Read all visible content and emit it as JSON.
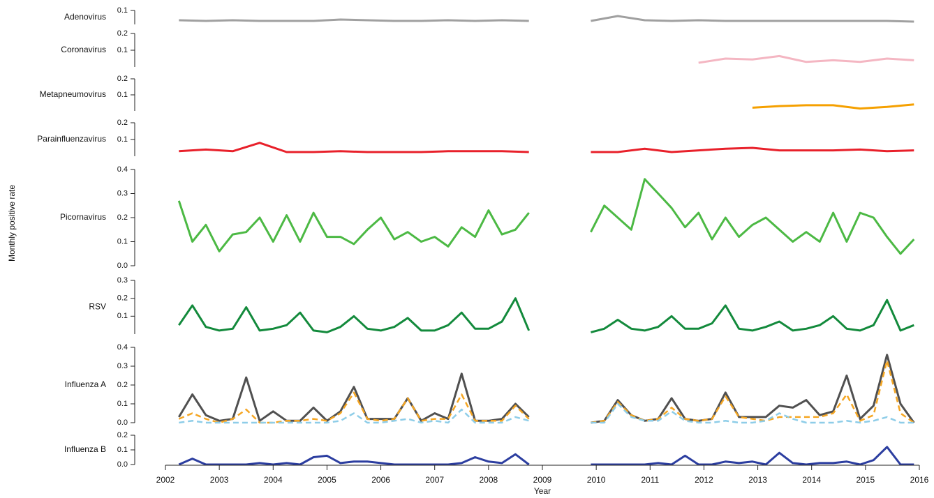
{
  "y_label": "Monthly positive rate",
  "chart_data": [
    {
      "type": "line",
      "title": "Adenovirus",
      "ylim": [
        0,
        0.1
      ],
      "yticks": [
        0.1
      ],
      "x": [
        2002.25,
        2002.75,
        2003.25,
        2003.75,
        2004.25,
        2004.75,
        2005.25,
        2005.75,
        2006.25,
        2006.75,
        2007.25,
        2007.75,
        2008.25,
        2008.75,
        2009.4,
        2009.9,
        2010.4,
        2010.9,
        2011.4,
        2011.9,
        2012.4,
        2012.9,
        2013.4,
        2013.9,
        2014.4,
        2014.9,
        2015.4,
        2015.9
      ],
      "series": [
        {
          "color": "#a0a0a0",
          "values": [
            0.03,
            0.025,
            0.03,
            0.025,
            0.025,
            0.025,
            0.035,
            0.03,
            0.025,
            0.025,
            0.03,
            0.025,
            0.03,
            0.025,
            null,
            0.025,
            0.06,
            0.03,
            0.025,
            0.03,
            0.025,
            0.025,
            0.025,
            0.025,
            0.025,
            0.025,
            0.025,
            0.02
          ]
        }
      ]
    },
    {
      "type": "line",
      "title": "Coronavirus",
      "ylim": [
        0,
        0.2
      ],
      "yticks": [
        0.1,
        0.2
      ],
      "x": [
        2011.9,
        2012.4,
        2012.9,
        2013.4,
        2013.9,
        2014.4,
        2014.9,
        2015.4,
        2015.9
      ],
      "series": [
        {
          "color": "#f4b6c2",
          "values": [
            0.025,
            0.05,
            0.045,
            0.065,
            0.03,
            0.04,
            0.03,
            0.05,
            0.04
          ]
        }
      ]
    },
    {
      "type": "line",
      "title": "Metapneumovirus",
      "ylim": [
        0,
        0.2
      ],
      "yticks": [
        0.1,
        0.2
      ],
      "x": [
        2012.9,
        2013.4,
        2013.9,
        2014.4,
        2014.9,
        2015.4,
        2015.9
      ],
      "series": [
        {
          "color": "#f5a000",
          "values": [
            0.02,
            0.03,
            0.035,
            0.035,
            0.015,
            0.025,
            0.04
          ]
        }
      ]
    },
    {
      "type": "line",
      "title": "Parainfluenzavirus",
      "ylim": [
        0,
        0.2
      ],
      "yticks": [
        0.1,
        0.2
      ],
      "x": [
        2002.25,
        2002.75,
        2003.25,
        2003.75,
        2004.25,
        2004.75,
        2005.25,
        2005.75,
        2006.25,
        2006.75,
        2007.25,
        2007.75,
        2008.25,
        2008.75,
        2009.4,
        2009.9,
        2010.4,
        2010.9,
        2011.4,
        2011.9,
        2012.4,
        2012.9,
        2013.4,
        2013.9,
        2014.4,
        2014.9,
        2015.4,
        2015.9
      ],
      "series": [
        {
          "color": "#e8202a",
          "values": [
            0.03,
            0.04,
            0.03,
            0.08,
            0.025,
            0.025,
            0.03,
            0.025,
            0.025,
            0.025,
            0.03,
            0.03,
            0.03,
            0.025,
            null,
            0.025,
            0.025,
            0.045,
            0.025,
            0.035,
            0.045,
            0.05,
            0.035,
            0.035,
            0.035,
            0.04,
            0.03,
            0.035
          ]
        }
      ]
    },
    {
      "type": "line",
      "title": "Picornavirus",
      "ylim": [
        0,
        0.4
      ],
      "yticks": [
        {
          "value": 0,
          "label": "0.0"
        },
        0.1,
        0.2,
        0.3,
        0.4
      ],
      "x": [
        2002.25,
        2002.5,
        2002.75,
        2003,
        2003.25,
        2003.5,
        2003.75,
        2004,
        2004.25,
        2004.5,
        2004.75,
        2005,
        2005.25,
        2005.5,
        2005.75,
        2006,
        2006.25,
        2006.5,
        2006.75,
        2007,
        2007.25,
        2007.5,
        2007.75,
        2008,
        2008.25,
        2008.5,
        2008.75,
        2009.4,
        2009.9,
        2010.15,
        2010.4,
        2010.65,
        2010.9,
        2011.15,
        2011.4,
        2011.65,
        2011.9,
        2012.15,
        2012.4,
        2012.65,
        2012.9,
        2013.15,
        2013.4,
        2013.65,
        2013.9,
        2014.15,
        2014.4,
        2014.65,
        2014.9,
        2015.15,
        2015.4,
        2015.65,
        2015.9
      ],
      "series": [
        {
          "color": "#4cb944",
          "values": [
            0.27,
            0.1,
            0.17,
            0.06,
            0.13,
            0.14,
            0.2,
            0.1,
            0.21,
            0.1,
            0.22,
            0.12,
            0.12,
            0.09,
            0.15,
            0.2,
            0.11,
            0.14,
            0.1,
            0.12,
            0.08,
            0.16,
            0.12,
            0.23,
            0.13,
            0.15,
            0.22,
            null,
            0.14,
            0.25,
            0.2,
            0.15,
            0.36,
            0.3,
            0.24,
            0.16,
            0.22,
            0.11,
            0.2,
            0.12,
            0.17,
            0.2,
            0.15,
            0.1,
            0.14,
            0.1,
            0.22,
            0.1,
            0.22,
            0.2,
            0.12,
            0.05,
            0.11
          ]
        }
      ]
    },
    {
      "type": "line",
      "title": "RSV",
      "ylim": [
        0,
        0.3
      ],
      "yticks": [
        0.1,
        0.2,
        0.3
      ],
      "x": [
        2002.25,
        2002.5,
        2002.75,
        2003,
        2003.25,
        2003.5,
        2003.75,
        2004,
        2004.25,
        2004.5,
        2004.75,
        2005,
        2005.25,
        2005.5,
        2005.75,
        2006,
        2006.25,
        2006.5,
        2006.75,
        2007,
        2007.25,
        2007.5,
        2007.75,
        2008,
        2008.25,
        2008.5,
        2008.75,
        2009.4,
        2009.9,
        2010.15,
        2010.4,
        2010.65,
        2010.9,
        2011.15,
        2011.4,
        2011.65,
        2011.9,
        2012.15,
        2012.4,
        2012.65,
        2012.9,
        2013.15,
        2013.4,
        2013.65,
        2013.9,
        2014.15,
        2014.4,
        2014.65,
        2014.9,
        2015.15,
        2015.4,
        2015.65,
        2015.9
      ],
      "series": [
        {
          "color": "#138a3c",
          "values": [
            0.05,
            0.16,
            0.04,
            0.02,
            0.03,
            0.15,
            0.02,
            0.03,
            0.05,
            0.12,
            0.02,
            0.01,
            0.04,
            0.1,
            0.03,
            0.02,
            0.04,
            0.09,
            0.02,
            0.02,
            0.05,
            0.12,
            0.03,
            0.03,
            0.07,
            0.2,
            0.02,
            null,
            0.01,
            0.03,
            0.08,
            0.03,
            0.02,
            0.04,
            0.1,
            0.03,
            0.03,
            0.06,
            0.16,
            0.03,
            0.02,
            0.04,
            0.07,
            0.02,
            0.03,
            0.05,
            0.1,
            0.03,
            0.02,
            0.05,
            0.19,
            0.02,
            0.05
          ]
        }
      ]
    },
    {
      "type": "line",
      "title": "Influenza A",
      "ylim": [
        0,
        0.4
      ],
      "yticks": [
        {
          "value": 0,
          "label": "0.0"
        },
        0.1,
        0.2,
        0.3,
        0.4
      ],
      "x": [
        2002.25,
        2002.5,
        2002.75,
        2003,
        2003.25,
        2003.5,
        2003.75,
        2004,
        2004.25,
        2004.5,
        2004.75,
        2005,
        2005.25,
        2005.5,
        2005.75,
        2006,
        2006.25,
        2006.5,
        2006.75,
        2007,
        2007.25,
        2007.5,
        2007.75,
        2008,
        2008.25,
        2008.5,
        2008.75,
        2009.4,
        2009.9,
        2010.15,
        2010.4,
        2010.65,
        2010.9,
        2011.15,
        2011.4,
        2011.65,
        2011.9,
        2012.15,
        2012.4,
        2012.65,
        2012.9,
        2013.15,
        2013.4,
        2013.65,
        2013.9,
        2014.15,
        2014.4,
        2014.65,
        2014.9,
        2015.15,
        2015.4,
        2015.65,
        2015.9
      ],
      "series": [
        {
          "color": "#505050",
          "dashed": false,
          "values": [
            0.03,
            0.15,
            0.04,
            0.01,
            0.02,
            0.24,
            0.01,
            0.06,
            0.01,
            0.01,
            0.08,
            0.01,
            0.06,
            0.19,
            0.02,
            0.02,
            0.02,
            0.13,
            0.01,
            0.05,
            0.02,
            0.26,
            0.01,
            0.01,
            0.02,
            0.1,
            0.03,
            null,
            0,
            0.01,
            0.12,
            0.04,
            0.01,
            0.02,
            0.13,
            0.02,
            0.01,
            0.02,
            0.16,
            0.03,
            0.03,
            0.03,
            0.09,
            0.08,
            0.12,
            0.04,
            0.06,
            0.25,
            0.02,
            0.09,
            0.36,
            0.1,
            0
          ]
        },
        {
          "color": "#f5a623",
          "dashed": true,
          "values": [
            0.02,
            0.05,
            0.02,
            0,
            0.02,
            0.07,
            0,
            0,
            0.01,
            0.01,
            0.02,
            0.01,
            0.05,
            0.16,
            0.02,
            0.01,
            0.02,
            0.13,
            0.01,
            0.02,
            0.02,
            0.15,
            0.01,
            0.01,
            0.01,
            0.09,
            0.02,
            null,
            0,
            0.01,
            0.11,
            0.04,
            0.01,
            0.02,
            0.08,
            0.02,
            0.01,
            0.02,
            0.14,
            0.03,
            0.02,
            0.01,
            0.03,
            0.03,
            0.03,
            0.03,
            0.05,
            0.15,
            0.01,
            0.04,
            0.33,
            0.05,
            0
          ]
        },
        {
          "color": "#8ecde8",
          "dashed": true,
          "values": [
            0,
            0.01,
            0,
            0,
            0,
            0,
            0,
            0,
            0,
            0,
            0,
            0,
            0.01,
            0.05,
            0,
            0,
            0.01,
            0.02,
            0,
            0.01,
            0,
            0.07,
            0,
            0,
            0,
            0.03,
            0.01,
            null,
            0,
            0,
            0.1,
            0.03,
            0.01,
            0.01,
            0.06,
            0.01,
            0,
            0,
            0.01,
            0,
            0,
            0.01,
            0.05,
            0.02,
            0,
            0,
            0,
            0.01,
            0,
            0.01,
            0.03,
            0,
            0
          ]
        }
      ]
    },
    {
      "type": "line",
      "title": "Influenza B",
      "ylim": [
        0,
        0.2
      ],
      "yticks": [
        {
          "value": 0,
          "label": "0.0"
        },
        0.1,
        0.2
      ],
      "xlim": [
        2002,
        2016
      ],
      "xticks": [
        2002,
        2003,
        2004,
        2005,
        2006,
        2007,
        2008,
        2009,
        2010,
        2011,
        2012,
        2013,
        2014,
        2015,
        2016
      ],
      "xlabel": "Year",
      "x": [
        2002.25,
        2002.5,
        2002.75,
        2003,
        2003.25,
        2003.5,
        2003.75,
        2004,
        2004.25,
        2004.5,
        2004.75,
        2005,
        2005.25,
        2005.5,
        2005.75,
        2006,
        2006.25,
        2006.5,
        2006.75,
        2007,
        2007.25,
        2007.5,
        2007.75,
        2008,
        2008.25,
        2008.5,
        2008.75,
        2009.4,
        2009.9,
        2010.15,
        2010.4,
        2010.65,
        2010.9,
        2011.15,
        2011.4,
        2011.65,
        2011.9,
        2012.15,
        2012.4,
        2012.65,
        2012.9,
        2013.15,
        2013.4,
        2013.65,
        2013.9,
        2014.15,
        2014.4,
        2014.65,
        2014.9,
        2015.15,
        2015.4,
        2015.65,
        2015.9
      ],
      "series": [
        {
          "color": "#2c3ea0",
          "values": [
            0,
            0.04,
            0,
            0,
            0,
            0,
            0.01,
            0,
            0.01,
            0,
            0.05,
            0.06,
            0.01,
            0.02,
            0.02,
            0.01,
            0,
            0,
            0,
            0,
            0,
            0.01,
            0.05,
            0.02,
            0.01,
            0.07,
            0,
            null,
            0,
            0,
            0,
            0,
            0,
            0.01,
            0,
            0.06,
            0,
            0,
            0.02,
            0.01,
            0.02,
            0,
            0.08,
            0.01,
            0,
            0.01,
            0.01,
            0.02,
            0,
            0.03,
            0.12,
            0,
            0
          ]
        }
      ]
    }
  ]
}
